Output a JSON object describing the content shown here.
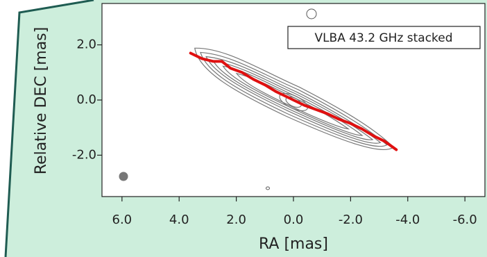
{
  "chart_data": {
    "type": "line",
    "annotation": "VLBA 43.2 GHz stacked",
    "xlabel": "RA [mas]",
    "ylabel": "Relative DEC [mas]",
    "x": [
      3.6,
      3.2,
      2.8,
      2.5,
      2.2,
      1.8,
      1.4,
      1.0,
      0.6,
      0.2,
      0.0,
      -0.4,
      -0.8,
      -1.2,
      -1.6,
      -2.0,
      -2.4,
      -2.8,
      -3.2,
      -3.6
    ],
    "values": [
      1.7,
      1.5,
      1.4,
      1.4,
      1.15,
      1.0,
      0.75,
      0.55,
      0.3,
      0.1,
      0.0,
      -0.2,
      -0.35,
      -0.5,
      -0.7,
      -0.85,
      -1.05,
      -1.3,
      -1.5,
      -1.8
    ],
    "color": "#e01010",
    "xlim": [
      6.7,
      -6.7
    ],
    "ylim": [
      -3.5,
      3.5
    ],
    "xticks": [
      {
        "value": 6,
        "label": "6.0"
      },
      {
        "value": 4,
        "label": "4.0"
      },
      {
        "value": 2,
        "label": "2.0"
      },
      {
        "value": 0,
        "label": "0.0"
      },
      {
        "value": -2,
        "label": "-2.0"
      },
      {
        "value": -4,
        "label": "-4.0"
      },
      {
        "value": -6,
        "label": "-6.0"
      }
    ],
    "yticks": [
      {
        "value": 2,
        "label": "2.0"
      },
      {
        "value": 0,
        "label": "0.0"
      },
      {
        "value": -2,
        "label": "-2.0"
      }
    ]
  }
}
